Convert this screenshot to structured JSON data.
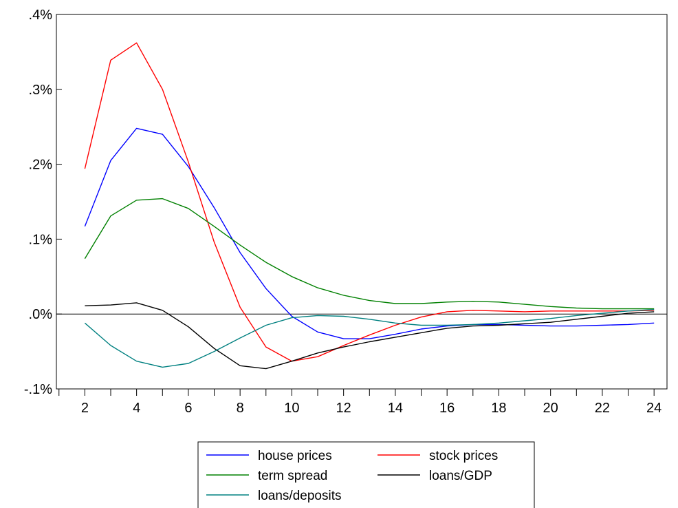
{
  "chart_data": {
    "type": "line",
    "title": "",
    "xlabel": "",
    "ylabel": "",
    "x": [
      2,
      3,
      4,
      5,
      6,
      7,
      8,
      9,
      10,
      11,
      12,
      13,
      14,
      15,
      16,
      17,
      18,
      19,
      20,
      21,
      22,
      23,
      24
    ],
    "xlim": [
      0.9,
      24.5
    ],
    "ylim": [
      -0.1,
      0.4
    ],
    "x_tick_labels": [
      "2",
      "4",
      "6",
      "8",
      "10",
      "12",
      "14",
      "16",
      "18",
      "20",
      "22",
      "24"
    ],
    "y_ticks": [
      -0.1,
      0.0,
      0.1,
      0.2,
      0.3,
      0.4
    ],
    "y_tick_labels": [
      "-.1%",
      ".0%",
      ".1%",
      ".2%",
      ".3%",
      ".4%"
    ],
    "zero_line": true,
    "grid": false,
    "legend_position": "bottom-center",
    "series": [
      {
        "name": "house prices",
        "color": "#0000ff",
        "values": [
          0.117,
          0.205,
          0.248,
          0.24,
          0.197,
          0.142,
          0.082,
          0.034,
          -0.003,
          -0.024,
          -0.033,
          -0.033,
          -0.027,
          -0.02,
          -0.016,
          -0.014,
          -0.014,
          -0.015,
          -0.016,
          -0.016,
          -0.015,
          -0.014,
          -0.012
        ]
      },
      {
        "name": "stock prices",
        "color": "#ff0000",
        "values": [
          0.194,
          0.339,
          0.362,
          0.3,
          0.203,
          0.096,
          0.009,
          -0.044,
          -0.063,
          -0.057,
          -0.042,
          -0.028,
          -0.015,
          -0.004,
          0.003,
          0.005,
          0.004,
          0.003,
          0.004,
          0.004,
          0.004,
          0.004,
          0.005
        ]
      },
      {
        "name": "term spread",
        "color": "#008000",
        "values": [
          0.074,
          0.131,
          0.152,
          0.154,
          0.141,
          0.117,
          0.092,
          0.069,
          0.05,
          0.035,
          0.025,
          0.018,
          0.014,
          0.014,
          0.016,
          0.017,
          0.016,
          0.013,
          0.01,
          0.008,
          0.007,
          0.007,
          0.007
        ]
      },
      {
        "name": "loans/GDP",
        "color": "#000000",
        "values": [
          0.011,
          0.012,
          0.015,
          0.005,
          -0.017,
          -0.046,
          -0.069,
          -0.073,
          -0.063,
          -0.052,
          -0.044,
          -0.037,
          -0.031,
          -0.025,
          -0.019,
          -0.016,
          -0.015,
          -0.013,
          -0.011,
          -0.007,
          -0.003,
          0.001,
          0.003
        ]
      },
      {
        "name": "loans/deposits",
        "color": "#008080",
        "values": [
          -0.012,
          -0.042,
          -0.063,
          -0.071,
          -0.066,
          -0.05,
          -0.032,
          -0.015,
          -0.005,
          -0.002,
          -0.003,
          -0.007,
          -0.012,
          -0.015,
          -0.015,
          -0.014,
          -0.012,
          -0.009,
          -0.006,
          -0.002,
          0.001,
          0.004,
          0.006
        ]
      }
    ]
  }
}
